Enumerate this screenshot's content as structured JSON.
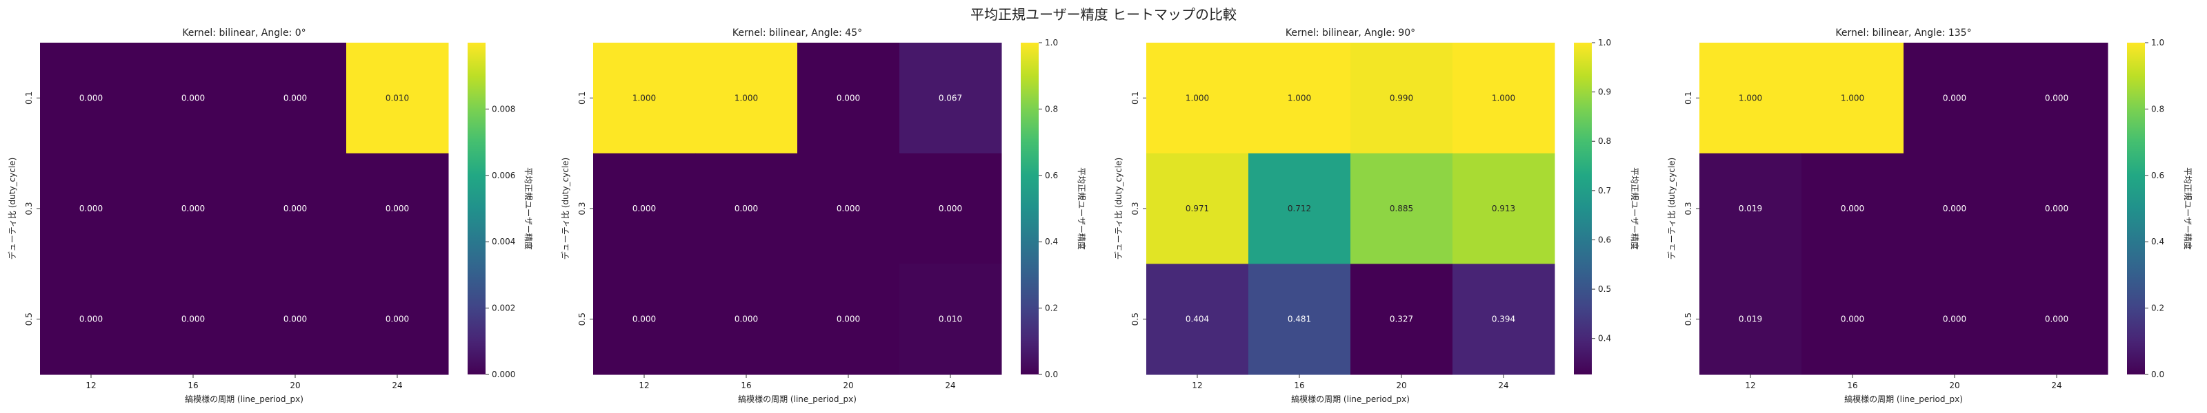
{
  "figure": {
    "title": "平均正規ユーザー精度 ヒートマップの比較"
  },
  "chart_data": [
    {
      "type": "heatmap",
      "title": "Kernel: bilinear, Angle: 0°",
      "xlabel": "縞模様の周期 (line_period_px)",
      "ylabel": "デューティ比 (duty_cycle)",
      "x_categories": [
        "12",
        "16",
        "20",
        "24"
      ],
      "y_categories": [
        "0.1",
        "0.3",
        "0.5"
      ],
      "values": [
        [
          0.0,
          0.0,
          0.0,
          0.01
        ],
        [
          0.0,
          0.0,
          0.0,
          0.0
        ],
        [
          0.0,
          0.0,
          0.0,
          0.0
        ]
      ],
      "cell_labels": [
        [
          "0.000",
          "0.000",
          "0.000",
          "0.010"
        ],
        [
          "0.000",
          "0.000",
          "0.000",
          "0.000"
        ],
        [
          "0.000",
          "0.000",
          "0.000",
          "0.000"
        ]
      ],
      "colorbar": {
        "label": "平均正規ユーザー精度",
        "vmin": 0.0,
        "vmax": 0.01,
        "ticks": [
          0.0,
          0.002,
          0.004,
          0.006,
          0.008
        ],
        "tick_labels": [
          "0.000",
          "0.002",
          "0.004",
          "0.006",
          "0.008"
        ]
      },
      "colormap": "viridis"
    },
    {
      "type": "heatmap",
      "title": "Kernel: bilinear, Angle: 45°",
      "xlabel": "縞模様の周期 (line_period_px)",
      "ylabel": "デューティ比 (duty_cycle)",
      "x_categories": [
        "12",
        "16",
        "20",
        "24"
      ],
      "y_categories": [
        "0.1",
        "0.3",
        "0.5"
      ],
      "values": [
        [
          1.0,
          1.0,
          0.0,
          0.067
        ],
        [
          0.0,
          0.0,
          0.0,
          0.0
        ],
        [
          0.0,
          0.0,
          0.0,
          0.01
        ]
      ],
      "cell_labels": [
        [
          "1.000",
          "1.000",
          "0.000",
          "0.067"
        ],
        [
          "0.000",
          "0.000",
          "0.000",
          "0.000"
        ],
        [
          "0.000",
          "0.000",
          "0.000",
          "0.010"
        ]
      ],
      "colorbar": {
        "label": "平均正規ユーザー精度",
        "vmin": 0.0,
        "vmax": 1.0,
        "ticks": [
          0.0,
          0.2,
          0.4,
          0.6,
          0.8,
          1.0
        ],
        "tick_labels": [
          "0.0",
          "0.2",
          "0.4",
          "0.6",
          "0.8",
          "1.0"
        ]
      },
      "colormap": "viridis"
    },
    {
      "type": "heatmap",
      "title": "Kernel: bilinear, Angle: 90°",
      "xlabel": "縞模様の周期 (line_period_px)",
      "ylabel": "デューティ比 (duty_cycle)",
      "x_categories": [
        "12",
        "16",
        "20",
        "24"
      ],
      "y_categories": [
        "0.1",
        "0.3",
        "0.5"
      ],
      "values": [
        [
          1.0,
          1.0,
          0.99,
          1.0
        ],
        [
          0.971,
          0.712,
          0.885,
          0.913
        ],
        [
          0.404,
          0.481,
          0.327,
          0.394
        ]
      ],
      "cell_labels": [
        [
          "1.000",
          "1.000",
          "0.990",
          "1.000"
        ],
        [
          "0.971",
          "0.712",
          "0.885",
          "0.913"
        ],
        [
          "0.404",
          "0.481",
          "0.327",
          "0.394"
        ]
      ],
      "colorbar": {
        "label": "平均正規ユーザー精度",
        "vmin": 0.327,
        "vmax": 1.0,
        "ticks": [
          0.4,
          0.5,
          0.6,
          0.7,
          0.8,
          0.9,
          1.0
        ],
        "tick_labels": [
          "0.4",
          "0.5",
          "0.6",
          "0.7",
          "0.8",
          "0.9",
          "1.0"
        ]
      },
      "colormap": "viridis"
    },
    {
      "type": "heatmap",
      "title": "Kernel: bilinear, Angle: 135°",
      "xlabel": "縞模様の周期 (line_period_px)",
      "ylabel": "デューティ比 (duty_cycle)",
      "x_categories": [
        "12",
        "16",
        "20",
        "24"
      ],
      "y_categories": [
        "0.1",
        "0.3",
        "0.5"
      ],
      "values": [
        [
          1.0,
          1.0,
          0.0,
          0.0
        ],
        [
          0.019,
          0.0,
          0.0,
          0.0
        ],
        [
          0.019,
          0.0,
          0.0,
          0.0
        ]
      ],
      "cell_labels": [
        [
          "1.000",
          "1.000",
          "0.000",
          "0.000"
        ],
        [
          "0.019",
          "0.000",
          "0.000",
          "0.000"
        ],
        [
          "0.019",
          "0.000",
          "0.000",
          "0.000"
        ]
      ],
      "colorbar": {
        "label": "平均正規ユーザー精度",
        "vmin": 0.0,
        "vmax": 1.0,
        "ticks": [
          0.0,
          0.2,
          0.4,
          0.6,
          0.8,
          1.0
        ],
        "tick_labels": [
          "0.0",
          "0.2",
          "0.4",
          "0.6",
          "0.8",
          "1.0"
        ]
      },
      "colormap": "viridis"
    }
  ]
}
